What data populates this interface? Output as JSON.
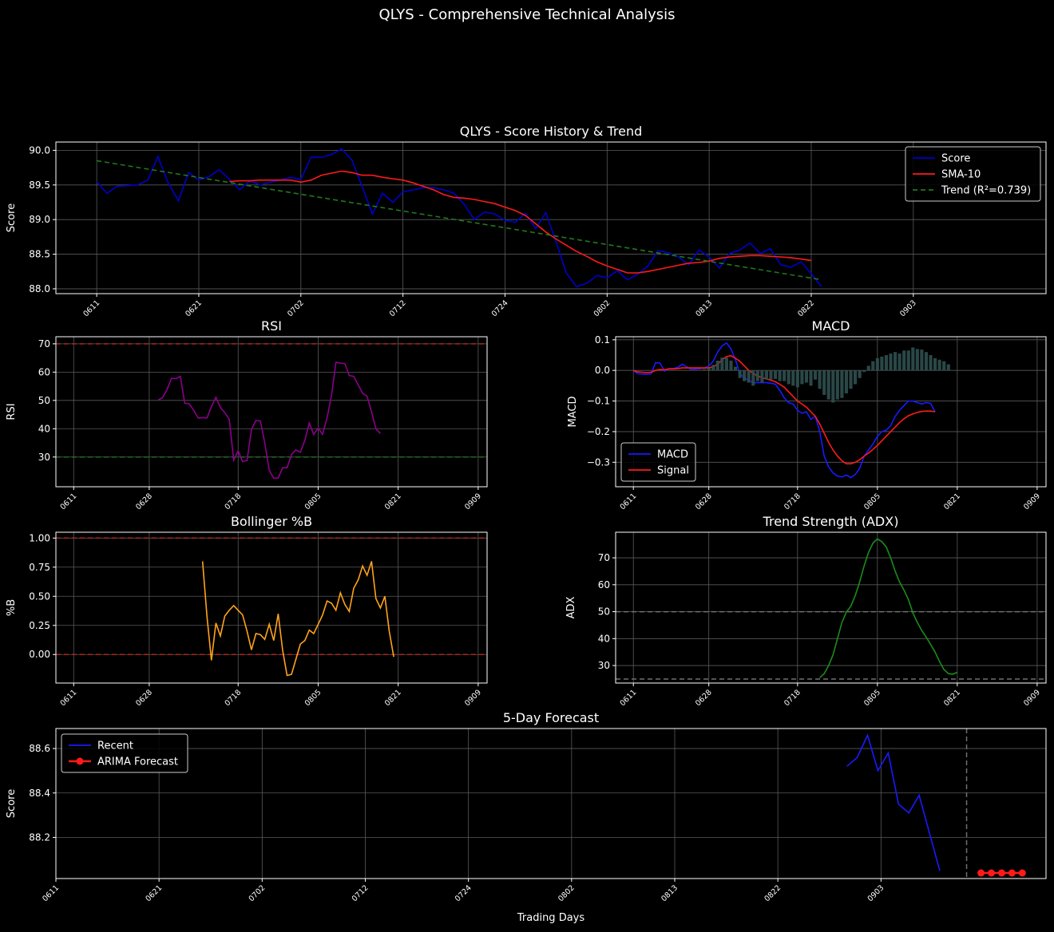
{
  "figure": {
    "suptitle": "QLYS - Comprehensive Technical Analysis"
  },
  "chart_data": [
    {
      "id": "score",
      "type": "line",
      "title": "QLYS - Score History & Trend",
      "ylabel": "Score",
      "xlabel": "",
      "xlim": [
        -4,
        93
      ],
      "ylim": [
        87.93,
        90.12
      ],
      "yticks": [
        88.0,
        88.5,
        89.0,
        89.5,
        90.0
      ],
      "ytick_labels": [
        "88.0",
        "88.5",
        "89.0",
        "89.5",
        "90.0"
      ],
      "xticks": [
        0,
        10,
        20,
        30,
        40,
        50,
        60,
        70,
        80
      ],
      "xtick_labels": [
        "0611",
        "0621",
        "0702",
        "0712",
        "0724",
        "0802",
        "0813",
        "0822",
        "0903"
      ],
      "grid": true,
      "legend": {
        "position": "upper-right",
        "entries": [
          "Score",
          "SMA-10",
          "Trend (R²=0.739)"
        ]
      },
      "series": [
        {
          "name": "Score",
          "color": "#0000cc",
          "x_start": 0,
          "values": [
            89.55,
            89.38,
            89.48,
            89.49,
            89.5,
            89.57,
            89.91,
            89.53,
            89.27,
            89.68,
            89.57,
            89.62,
            89.72,
            89.58,
            89.43,
            89.56,
            89.5,
            89.54,
            89.57,
            89.61,
            89.58,
            89.9,
            89.9,
            89.94,
            90.02,
            89.86,
            89.48,
            89.08,
            89.38,
            89.25,
            89.4,
            89.43,
            89.46,
            89.46,
            89.43,
            89.38,
            89.22,
            89.0,
            89.11,
            89.08,
            88.99,
            88.96,
            89.09,
            88.87,
            89.1,
            88.68,
            88.23,
            88.03,
            88.08,
            88.19,
            88.16,
            88.26,
            88.13,
            88.21,
            88.33,
            88.55,
            88.52,
            88.46,
            88.35,
            88.56,
            88.46,
            88.3,
            88.51,
            88.56,
            88.66,
            88.51,
            88.58,
            88.35,
            88.31,
            88.39,
            88.22,
            88.03
          ]
        },
        {
          "name": "SMA-10",
          "color": "#ff1a1a",
          "x_start": 13,
          "values": [
            89.55,
            89.56,
            89.56,
            89.57,
            89.57,
            89.57,
            89.57,
            89.54,
            89.57,
            89.64,
            89.67,
            89.7,
            89.68,
            89.64,
            89.64,
            89.61,
            89.59,
            89.57,
            89.53,
            89.48,
            89.43,
            89.36,
            89.32,
            89.31,
            89.29,
            89.26,
            89.23,
            89.18,
            89.13,
            89.06,
            88.94,
            88.82,
            88.72,
            88.63,
            88.54,
            88.47,
            88.39,
            88.33,
            88.28,
            88.23,
            88.23,
            88.25,
            88.28,
            88.31,
            88.34,
            88.37,
            88.38,
            88.4,
            88.44,
            88.46,
            88.47,
            88.48,
            88.48,
            88.47,
            88.46,
            88.45,
            88.43,
            88.41
          ]
        },
        {
          "name": "Trend (R²=0.739)",
          "color": "#1f7a1f",
          "x": [
            0,
            71
          ],
          "values": [
            89.85,
            88.13
          ]
        }
      ]
    },
    {
      "id": "rsi",
      "type": "line",
      "title": "RSI",
      "ylabel": "RSI",
      "xlim": [
        -4,
        93
      ],
      "ylim": [
        19.5,
        72.5
      ],
      "yticks": [
        30,
        40,
        50,
        60,
        70
      ],
      "ytick_labels": [
        "30",
        "40",
        "50",
        "60",
        "70"
      ],
      "xticks": [
        0,
        17,
        37,
        55,
        73,
        91
      ],
      "xtick_labels": [
        "0611",
        "0628",
        "0718",
        "0805",
        "0821",
        "0909"
      ],
      "hlines": [
        {
          "y": 70,
          "color": "#b22222"
        },
        {
          "y": 30,
          "color": "#1f6b1f"
        }
      ],
      "grid": true,
      "series": [
        {
          "name": "",
          "color": "#8b008b",
          "x_start": 19,
          "values": [
            50.1,
            51.0,
            53.8,
            57.8,
            57.7,
            58.5,
            49.0,
            48.8,
            46.5,
            43.8,
            43.9,
            43.8,
            47.8,
            51.1,
            47.5,
            45.7,
            43.3,
            28.9,
            32.2,
            28.4,
            28.8,
            39.7,
            42.9,
            42.7,
            35.0,
            25.3,
            22.5,
            22.6,
            26.2,
            26.2,
            30.9,
            32.5,
            31.7,
            35.9,
            42.0,
            38.0,
            40.3,
            38.0,
            43.8,
            51.8,
            63.5,
            63.2,
            63.0,
            58.8,
            58.5,
            55.5,
            52.5,
            51.5,
            46.0,
            40.0,
            38.3
          ]
        }
      ]
    },
    {
      "id": "macd",
      "type": "line",
      "title": "MACD",
      "ylabel": "MACD",
      "xlim": [
        -4,
        93
      ],
      "ylim": [
        -0.38,
        0.11
      ],
      "yticks": [
        -0.3,
        -0.2,
        -0.1,
        0.0,
        0.1
      ],
      "ytick_labels": [
        "−0.3",
        "−0.2",
        "−0.1",
        "0.0",
        "0.1"
      ],
      "xticks": [
        0,
        17,
        37,
        55,
        73,
        91
      ],
      "xtick_labels": [
        "0611",
        "0628",
        "0718",
        "0805",
        "0821",
        "0909"
      ],
      "grid": true,
      "legend": {
        "position": "lower-left",
        "entries": [
          "MACD",
          "Signal"
        ]
      },
      "series": [
        {
          "name": "MACD",
          "color": "#1a1aff",
          "x_start": 0,
          "values": [
            0.0,
            -0.011,
            -0.012,
            -0.013,
            -0.011,
            0.025,
            0.024,
            -0.002,
            0.006,
            0.006,
            0.01,
            0.02,
            0.012,
            0.003,
            0.004,
            0.006,
            0.008,
            0.014,
            0.03,
            0.06,
            0.08,
            0.09,
            0.07,
            0.035,
            -0.01,
            -0.025,
            -0.033,
            -0.04,
            -0.04,
            -0.04,
            -0.04,
            -0.042,
            -0.045,
            -0.065,
            -0.09,
            -0.105,
            -0.11,
            -0.13,
            -0.14,
            -0.135,
            -0.16,
            -0.15,
            -0.2,
            -0.28,
            -0.315,
            -0.335,
            -0.345,
            -0.348,
            -0.342,
            -0.35,
            -0.34,
            -0.32,
            -0.28,
            -0.26,
            -0.24,
            -0.215,
            -0.2,
            -0.195,
            -0.18,
            -0.15,
            -0.13,
            -0.115,
            -0.1,
            -0.1,
            -0.105,
            -0.11,
            -0.105,
            -0.108,
            -0.135
          ]
        },
        {
          "name": "Signal",
          "color": "#ff1a1a",
          "x_start": 0,
          "values": [
            0.0,
            -0.005,
            -0.006,
            -0.007,
            -0.006,
            0.0,
            0.003,
            0.002,
            0.005,
            0.005,
            0.006,
            0.008,
            0.008,
            0.008,
            0.008,
            0.008,
            0.008,
            0.008,
            0.012,
            0.02,
            0.035,
            0.045,
            0.048,
            0.04,
            0.03,
            0.015,
            0.0,
            -0.01,
            -0.018,
            -0.024,
            -0.028,
            -0.032,
            -0.037,
            -0.045,
            -0.055,
            -0.07,
            -0.085,
            -0.1,
            -0.11,
            -0.12,
            -0.135,
            -0.15,
            -0.175,
            -0.205,
            -0.235,
            -0.26,
            -0.28,
            -0.295,
            -0.305,
            -0.305,
            -0.3,
            -0.292,
            -0.28,
            -0.27,
            -0.258,
            -0.245,
            -0.23,
            -0.215,
            -0.2,
            -0.185,
            -0.17,
            -0.158,
            -0.148,
            -0.142,
            -0.137,
            -0.134,
            -0.133,
            -0.133,
            -0.135
          ]
        },
        {
          "name": "Histogram",
          "type": "bar",
          "color": "#2f4f4f",
          "x_start": 13,
          "values": [
            0.001,
            0.001,
            0.002,
            0.004,
            0.008,
            0.018,
            0.032,
            0.042,
            0.042,
            0.032,
            0.012,
            -0.025,
            -0.035,
            -0.04,
            -0.05,
            -0.035,
            -0.04,
            -0.03,
            -0.03,
            -0.028,
            -0.035,
            -0.035,
            -0.045,
            -0.05,
            -0.055,
            -0.045,
            -0.04,
            -0.05,
            -0.03,
            -0.06,
            -0.08,
            -0.095,
            -0.105,
            -0.095,
            -0.09,
            -0.075,
            -0.06,
            -0.045,
            -0.025,
            -0.005,
            0.015,
            0.03,
            0.04,
            0.045,
            0.05,
            0.055,
            0.06,
            0.055,
            0.065,
            0.065,
            0.075,
            0.07,
            0.068,
            0.06,
            0.05,
            0.04,
            0.035,
            0.03,
            0.02
          ]
        }
      ]
    },
    {
      "id": "bollinger",
      "type": "line",
      "title": "Bollinger %B",
      "ylabel": "%B",
      "xlim": [
        -4,
        93
      ],
      "ylim": [
        -0.245,
        1.05
      ],
      "yticks": [
        0.0,
        0.25,
        0.5,
        0.75,
        1.0
      ],
      "ytick_labels": [
        "0.00",
        "0.25",
        "0.50",
        "0.75",
        "1.00"
      ],
      "xticks": [
        0,
        17,
        37,
        55,
        73,
        91
      ],
      "xtick_labels": [
        "0611",
        "0628",
        "0718",
        "0805",
        "0821",
        "0909"
      ],
      "hlines": [
        {
          "y": 1.0,
          "color": "#b22222"
        },
        {
          "y": 0.0,
          "color": "#b22222"
        }
      ],
      "grid": true,
      "series": [
        {
          "name": "",
          "color": "#ffa31a",
          "x_start": 29,
          "values": [
            0.8,
            0.32,
            -0.05,
            0.27,
            0.16,
            0.33,
            0.38,
            0.42,
            0.38,
            0.34,
            0.2,
            0.04,
            0.18,
            0.17,
            0.13,
            0.26,
            0.12,
            0.35,
            0.04,
            -0.18,
            -0.17,
            -0.04,
            0.09,
            0.12,
            0.21,
            0.18,
            0.26,
            0.34,
            0.46,
            0.44,
            0.38,
            0.53,
            0.43,
            0.37,
            0.57,
            0.64,
            0.76,
            0.68,
            0.8,
            0.48,
            0.4,
            0.5,
            0.2,
            -0.02
          ]
        }
      ]
    },
    {
      "id": "adx",
      "type": "line",
      "title": "Trend Strength (ADX)",
      "ylabel": "ADX",
      "xlim": [
        -4,
        93
      ],
      "ylim": [
        23.5,
        79.5
      ],
      "yticks": [
        30,
        40,
        50,
        60,
        70
      ],
      "ytick_labels": [
        "30",
        "40",
        "50",
        "60",
        "70"
      ],
      "xticks": [
        0,
        17,
        37,
        55,
        73,
        91
      ],
      "xtick_labels": [
        "0611",
        "0628",
        "0718",
        "0805",
        "0821",
        "0909"
      ],
      "hlines": [
        {
          "y": 50,
          "color": "#707070"
        },
        {
          "y": 25,
          "color": "#707070"
        }
      ],
      "grid": true,
      "series": [
        {
          "name": "",
          "color": "#1a8c1a",
          "x_start": 42,
          "values": [
            25.5,
            27.0,
            30.0,
            34.0,
            40.0,
            46.0,
            49.8,
            52.0,
            56.0,
            61.0,
            67.0,
            72.0,
            75.5,
            77.0,
            76.0,
            74.0,
            70.0,
            65.0,
            61.0,
            58.0,
            54.5,
            49.5,
            46.0,
            43.0,
            40.5,
            37.8,
            35.0,
            31.5,
            28.5,
            27.0,
            26.8,
            27.5
          ]
        }
      ]
    },
    {
      "id": "forecast",
      "type": "line",
      "title": "5-Day Forecast",
      "ylabel": "Score",
      "xlabel": "Trading Days",
      "xlim": [
        0,
        96
      ],
      "ylim": [
        88.015,
        88.69
      ],
      "yticks": [
        88.2,
        88.4,
        88.6
      ],
      "ytick_labels": [
        "88.2",
        "88.4",
        "88.6"
      ],
      "xticks": [
        0,
        10,
        20,
        30,
        40,
        50,
        60,
        70,
        80
      ],
      "xtick_labels": [
        "0611",
        "0621",
        "0702",
        "0712",
        "0724",
        "0802",
        "0813",
        "0822",
        "0903"
      ],
      "vline": {
        "x": 88.3,
        "color": "#707070"
      },
      "grid": true,
      "legend": {
        "position": "upper-left",
        "entries": [
          "Recent",
          "ARIMA Forecast"
        ]
      },
      "series": [
        {
          "name": "Recent",
          "color": "#1a1aff",
          "x_start": 76.7,
          "values": [
            88.52,
            88.56,
            88.66,
            88.5,
            88.58,
            88.35,
            88.31,
            88.39,
            88.22,
            88.05
          ]
        },
        {
          "name": "ARIMA Forecast",
          "color": "#ff1a1a",
          "marker": "circle",
          "x_start": 89.7,
          "values": [
            88.04,
            88.04,
            88.04,
            88.04,
            88.04
          ]
        }
      ]
    }
  ]
}
